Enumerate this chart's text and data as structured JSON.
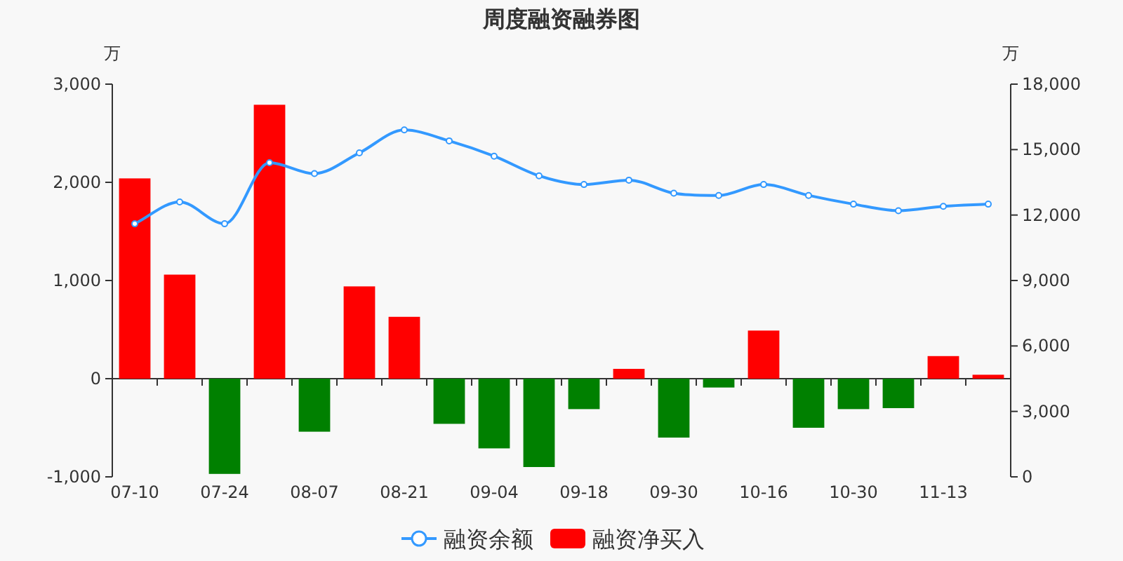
{
  "chart_data": {
    "type": "bar",
    "title": "周度融资融券图",
    "ylabel": "万",
    "y2label": "万",
    "categories": [
      "07-10",
      null,
      "07-24",
      null,
      "08-07",
      null,
      "08-21",
      null,
      "09-04",
      null,
      "09-18",
      null,
      "09-30",
      null,
      "10-16",
      null,
      "10-30",
      null,
      "11-13",
      null
    ],
    "series": [
      {
        "name": "融资余额",
        "type": "line",
        "axis": "y2",
        "color": "#3399ff",
        "marker": "circle",
        "values": [
          11600,
          12600,
          11600,
          14400,
          13900,
          14850,
          15900,
          15400,
          14700,
          13800,
          13400,
          13600,
          13000,
          12900,
          13400,
          12900,
          12500,
          12200,
          12400,
          12500
        ]
      },
      {
        "name": "融资净买入",
        "color": "#ff0000",
        "colors": [
          "#ff0000",
          "#ff0000",
          "#008000",
          "#ff0000",
          "#008000",
          "#ff0000",
          "#ff0000",
          "#008000",
          "#008000",
          "#008000",
          "#008000",
          "#ff0000",
          "#008000",
          "#008000",
          "#ff0000",
          "#008000",
          "#008000",
          "#008000",
          "#ff0000",
          "#ff0000"
        ],
        "values": [
          2040,
          1060,
          -970,
          2790,
          -540,
          940,
          630,
          -460,
          -710,
          -900,
          -310,
          100,
          -600,
          -90,
          490,
          -500,
          -310,
          -300,
          230,
          40
        ]
      }
    ],
    "ylim": [
      -1000,
      3000
    ],
    "yticks": [
      {
        "value": -1000,
        "label": "-1,000"
      },
      0,
      {
        "value": 1000,
        "label": "1,000"
      },
      {
        "value": 2000,
        "label": "2,000"
      },
      {
        "value": 3000,
        "label": "3,000"
      }
    ],
    "y2lim": [
      0,
      18000
    ],
    "y2ticks": [
      0,
      {
        "value": 3000,
        "label": "3,000"
      },
      {
        "value": 6000,
        "label": "6,000"
      },
      {
        "value": 9000,
        "label": "9,000"
      },
      {
        "value": 12000,
        "label": "12,000"
      },
      {
        "value": 15000,
        "label": "15,000"
      },
      {
        "value": 18000,
        "label": "18,000"
      }
    ],
    "legend": "bottom"
  }
}
